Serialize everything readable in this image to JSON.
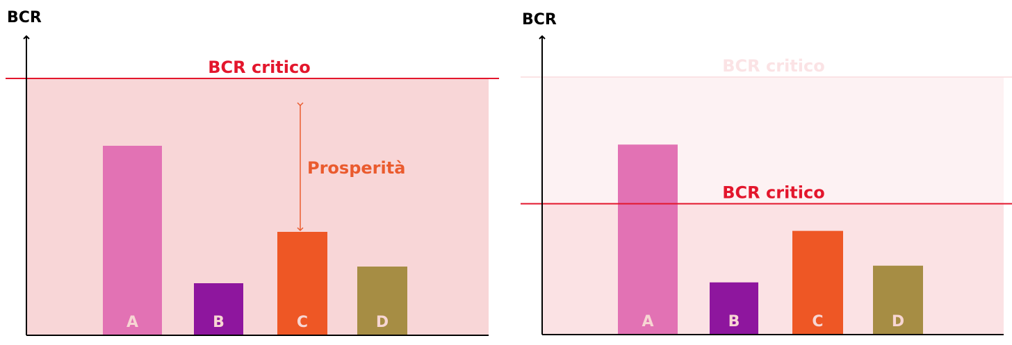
{
  "chart_data": [
    {
      "type": "bar",
      "ylabel": "BCR",
      "categories": [
        "A",
        "B",
        "C",
        "D"
      ],
      "values": [
        273,
        75,
        149,
        99
      ],
      "ylim": [
        0,
        370
      ],
      "colors": [
        "#e272b4",
        "#8e169e",
        "#ee5725",
        "#a68d44"
      ],
      "label_color": "#f7d6d3",
      "threshold": {
        "label": "BCR critico",
        "value": 370,
        "color": "#e3162c",
        "region_color": "#f8d6d7",
        "opacity": 1
      },
      "annotation": {
        "label": "Prosperità",
        "from": 149,
        "to": 333,
        "category_gap": "C",
        "color": "#ea5b2e"
      }
    },
    {
      "type": "bar",
      "ylabel": "BCR",
      "categories": [
        "A",
        "B",
        "C",
        "D"
      ],
      "values": [
        273,
        75,
        149,
        99
      ],
      "ylim": [
        0,
        370
      ],
      "colors": [
        "#e272b4",
        "#8e169e",
        "#ee5725",
        "#a68d44"
      ],
      "label_color": "#f7d6d3",
      "faded_threshold": {
        "label": "BCR critico",
        "value": 370,
        "color": "#fbe3e5",
        "region_color": "#fdf2f3"
      },
      "threshold": {
        "label": "BCR critico",
        "value": 188,
        "color": "#e3162c",
        "region_color": "#fbe2e4"
      }
    }
  ]
}
